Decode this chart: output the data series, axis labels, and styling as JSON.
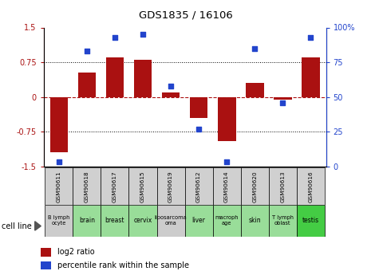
{
  "title": "GDS1835 / 16106",
  "samples": [
    "GSM90611",
    "GSM90618",
    "GSM90617",
    "GSM90615",
    "GSM90619",
    "GSM90612",
    "GSM90614",
    "GSM90620",
    "GSM90613",
    "GSM90616"
  ],
  "cell_lines": [
    "B lymph\nocyte",
    "brain",
    "breast",
    "cervix",
    "liposarcoma\n(oma)",
    "liver",
    "macroph\nage",
    "skin",
    "T lymph\noblast",
    "testis"
  ],
  "cell_line_display": [
    "B lymph\nocyte",
    "brain",
    "breast",
    "cervix",
    "liposarcoma\n(oma)",
    "liver",
    "macroph\nage",
    "skin",
    "T lymph\noblast",
    "testis"
  ],
  "cell_line_colors": [
    "#dddddd",
    "#aaddaa",
    "#aaddaa",
    "#aaddaa",
    "#dddddd",
    "#aaddaa",
    "#aaddaa",
    "#aaddaa",
    "#aaddaa",
    "#44bb44"
  ],
  "log2_ratio": [
    -1.2,
    0.52,
    0.85,
    0.8,
    0.1,
    -0.45,
    -0.95,
    0.3,
    -0.05,
    0.85
  ],
  "percentile_rank": [
    3,
    83,
    93,
    95,
    58,
    27,
    3,
    85,
    46,
    93
  ],
  "bar_color": "#aa1111",
  "dot_color": "#2244cc",
  "ylim_left": [
    -1.5,
    1.5
  ],
  "ylim_right": [
    0,
    100
  ],
  "yticks_left": [
    -1.5,
    -0.75,
    0,
    0.75,
    1.5
  ],
  "ytick_labels_left": [
    "-1.5",
    "-0.75",
    "0",
    "0.75",
    "1.5"
  ],
  "yticks_right": [
    0,
    25,
    50,
    75,
    100
  ],
  "ytick_labels_right": [
    "0",
    "25",
    "50",
    "75",
    "100%"
  ],
  "legend_red": "log2 ratio",
  "legend_blue": "percentile rank within the sample",
  "cell_line_label": "cell line"
}
